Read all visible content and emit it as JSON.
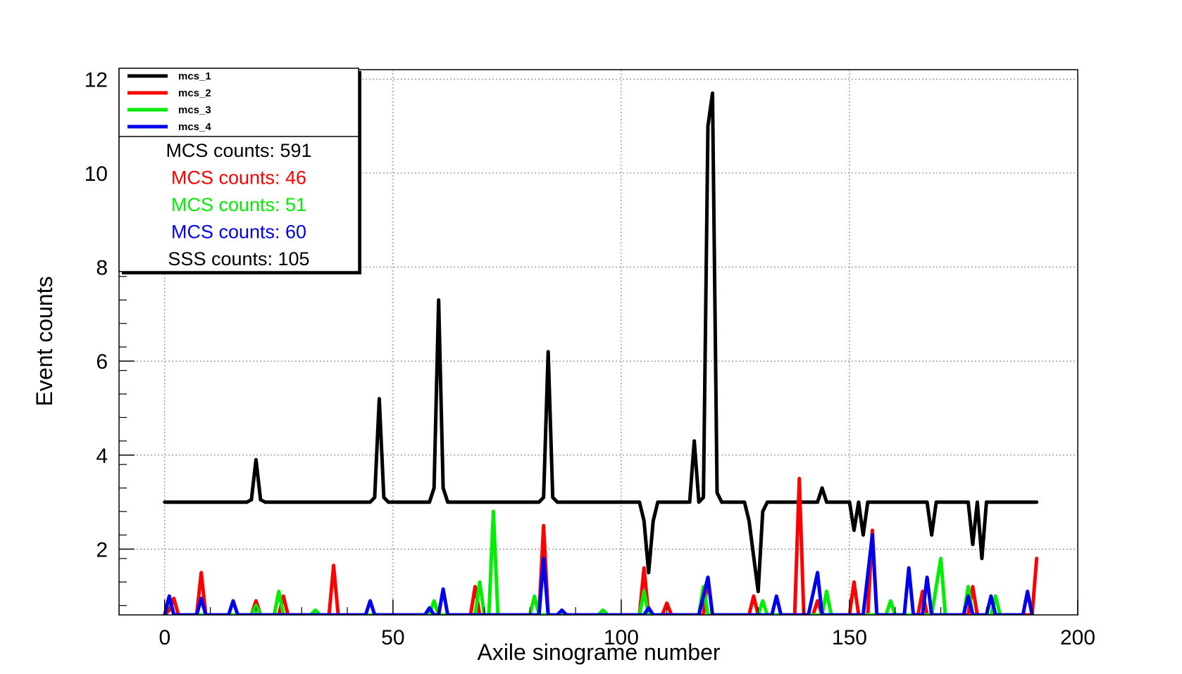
{
  "chart_data": {
    "type": "line",
    "title": "",
    "xlabel": "Axile sinograme number",
    "ylabel": "Event counts",
    "xlim": [
      -10,
      200
    ],
    "ylim": [
      0.6,
      12.2
    ],
    "x_ticks": [
      0,
      50,
      100,
      150,
      200
    ],
    "y_ticks": [
      2,
      4,
      6,
      8,
      10,
      12
    ],
    "grid": true,
    "legend_position": "top-left",
    "series": [
      {
        "name": "mcs_1",
        "color": "#000000",
        "points": [
          [
            0,
            3
          ],
          [
            18,
            3
          ],
          [
            19,
            3.05
          ],
          [
            20,
            3.9
          ],
          [
            21,
            3.05
          ],
          [
            22,
            3
          ],
          [
            45,
            3
          ],
          [
            46,
            3.1
          ],
          [
            47,
            5.2
          ],
          [
            48,
            3.1
          ],
          [
            49,
            3
          ],
          [
            58,
            3
          ],
          [
            59,
            3.3
          ],
          [
            60,
            7.3
          ],
          [
            61,
            3.3
          ],
          [
            62,
            3
          ],
          [
            82,
            3
          ],
          [
            83,
            3.1
          ],
          [
            84,
            6.2
          ],
          [
            85,
            3.1
          ],
          [
            86,
            3
          ],
          [
            104,
            3
          ],
          [
            105,
            2.6
          ],
          [
            106,
            1.5
          ],
          [
            107,
            2.6
          ],
          [
            108,
            3
          ],
          [
            115,
            3
          ],
          [
            116,
            4.3
          ],
          [
            117,
            3
          ],
          [
            118,
            3.1
          ],
          [
            119,
            11
          ],
          [
            120,
            11.7
          ],
          [
            121,
            3.2
          ],
          [
            122,
            3
          ],
          [
            127,
            3
          ],
          [
            128,
            2.6
          ],
          [
            130,
            1.1
          ],
          [
            131,
            2.8
          ],
          [
            132,
            3
          ],
          [
            143,
            3
          ],
          [
            144,
            3.3
          ],
          [
            145,
            3
          ],
          [
            150,
            3
          ],
          [
            151,
            2.4
          ],
          [
            152,
            3
          ],
          [
            153,
            2.3
          ],
          [
            154,
            3
          ],
          [
            167,
            3
          ],
          [
            168,
            2.3
          ],
          [
            169,
            3
          ],
          [
            176,
            3
          ],
          [
            177,
            2.1
          ],
          [
            178,
            3
          ],
          [
            179,
            1.8
          ],
          [
            180,
            3
          ],
          [
            191,
            3
          ]
        ]
      },
      {
        "name": "mcs_2",
        "color": "#ff0000",
        "points": [
          [
            0,
            0.6
          ],
          [
            1,
            0.7
          ],
          [
            2,
            0.95
          ],
          [
            3,
            0.6
          ],
          [
            7,
            0.6
          ],
          [
            8,
            1.5
          ],
          [
            9,
            0.6
          ],
          [
            19,
            0.6
          ],
          [
            20,
            0.9
          ],
          [
            21,
            0.6
          ],
          [
            25,
            0.6
          ],
          [
            26,
            1
          ],
          [
            27,
            0.6
          ],
          [
            36,
            0.6
          ],
          [
            37,
            1.65
          ],
          [
            38,
            0.6
          ],
          [
            67,
            0.6
          ],
          [
            68,
            1.2
          ],
          [
            69,
            0.6
          ],
          [
            82,
            0.6
          ],
          [
            83,
            2.5
          ],
          [
            84,
            0.6
          ],
          [
            104,
            0.6
          ],
          [
            105,
            1.6
          ],
          [
            106,
            0.6
          ],
          [
            109,
            0.6
          ],
          [
            110,
            0.85
          ],
          [
            111,
            0.6
          ],
          [
            118,
            0.6
          ],
          [
            119,
            1.4
          ],
          [
            120,
            0.6
          ],
          [
            128,
            0.6
          ],
          [
            129,
            1
          ],
          [
            130,
            0.6
          ],
          [
            138,
            0.6
          ],
          [
            139,
            3.5
          ],
          [
            140,
            0.6
          ],
          [
            142,
            0.6
          ],
          [
            143,
            0.9
          ],
          [
            144,
            0.6
          ],
          [
            150,
            0.6
          ],
          [
            151,
            1.3
          ],
          [
            152,
            0.6
          ],
          [
            154,
            0.6
          ],
          [
            155,
            2.4
          ],
          [
            156,
            0.6
          ],
          [
            165,
            0.6
          ],
          [
            166,
            1.1
          ],
          [
            167,
            0.6
          ],
          [
            176,
            0.6
          ],
          [
            177,
            1.2
          ],
          [
            178,
            0.6
          ],
          [
            190,
            0.6
          ],
          [
            191,
            1.8
          ]
        ]
      },
      {
        "name": "mcs_3",
        "color": "#00ee00",
        "points": [
          [
            0,
            0.6
          ],
          [
            1,
            1
          ],
          [
            2,
            0.6
          ],
          [
            19,
            0.6
          ],
          [
            20,
            0.8
          ],
          [
            21,
            0.6
          ],
          [
            24,
            0.6
          ],
          [
            25,
            1.1
          ],
          [
            26,
            0.6
          ],
          [
            32,
            0.6
          ],
          [
            33,
            0.7
          ],
          [
            34,
            0.6
          ],
          [
            58,
            0.6
          ],
          [
            59,
            0.9
          ],
          [
            60,
            0.6
          ],
          [
            68,
            0.6
          ],
          [
            69,
            1.3
          ],
          [
            70,
            0.6
          ],
          [
            71,
            0.6
          ],
          [
            72,
            2.8
          ],
          [
            73,
            0.6
          ],
          [
            80,
            0.6
          ],
          [
            81,
            1
          ],
          [
            82,
            0.6
          ],
          [
            95,
            0.6
          ],
          [
            96,
            0.7
          ],
          [
            97,
            0.6
          ],
          [
            104,
            0.6
          ],
          [
            105,
            1.1
          ],
          [
            106,
            0.6
          ],
          [
            117,
            0.6
          ],
          [
            118,
            1.2
          ],
          [
            119,
            0.6
          ],
          [
            130,
            0.6
          ],
          [
            131,
            0.9
          ],
          [
            132,
            0.6
          ],
          [
            144,
            0.6
          ],
          [
            145,
            1.1
          ],
          [
            146,
            0.6
          ],
          [
            158,
            0.6
          ],
          [
            159,
            0.9
          ],
          [
            160,
            0.6
          ],
          [
            168,
            0.6
          ],
          [
            170,
            1.8
          ],
          [
            171,
            0.6
          ],
          [
            175,
            0.6
          ],
          [
            176,
            1.2
          ],
          [
            177,
            0.6
          ],
          [
            181,
            0.6
          ],
          [
            182,
            1
          ],
          [
            183,
            0.6
          ]
        ]
      },
      {
        "name": "mcs_4",
        "color": "#0000ee",
        "points": [
          [
            0,
            0.6
          ],
          [
            1,
            1
          ],
          [
            2,
            0.6
          ],
          [
            7,
            0.6
          ],
          [
            8,
            0.95
          ],
          [
            9,
            0.6
          ],
          [
            14,
            0.6
          ],
          [
            15,
            0.9
          ],
          [
            16,
            0.6
          ],
          [
            44,
            0.6
          ],
          [
            45,
            0.9
          ],
          [
            46,
            0.6
          ],
          [
            57,
            0.6
          ],
          [
            58,
            0.75
          ],
          [
            59,
            0.6
          ],
          [
            60,
            0.6
          ],
          [
            61,
            1.15
          ],
          [
            62,
            0.6
          ],
          [
            82,
            0.6
          ],
          [
            83,
            1.8
          ],
          [
            84,
            0.6
          ],
          [
            86,
            0.6
          ],
          [
            87,
            0.7
          ],
          [
            88,
            0.6
          ],
          [
            105,
            0.6
          ],
          [
            106,
            0.75
          ],
          [
            107,
            0.6
          ],
          [
            117,
            0.6
          ],
          [
            119,
            1.4
          ],
          [
            120,
            0.6
          ],
          [
            133,
            0.6
          ],
          [
            134,
            1
          ],
          [
            135,
            0.6
          ],
          [
            141,
            0.6
          ],
          [
            143,
            1.5
          ],
          [
            144,
            0.6
          ],
          [
            153,
            0.6
          ],
          [
            155,
            2.3
          ],
          [
            156,
            0.6
          ],
          [
            162,
            0.6
          ],
          [
            163,
            1.6
          ],
          [
            164,
            0.6
          ],
          [
            166,
            0.6
          ],
          [
            167,
            1.4
          ],
          [
            168,
            0.6
          ],
          [
            175,
            0.6
          ],
          [
            176,
            1
          ],
          [
            177,
            0.6
          ],
          [
            180,
            0.6
          ],
          [
            181,
            1
          ],
          [
            182,
            0.6
          ],
          [
            188,
            0.6
          ],
          [
            189,
            1.1
          ],
          [
            190,
            0.6
          ]
        ]
      }
    ],
    "stats": [
      {
        "text": "MCS counts: 591",
        "color": "#000000"
      },
      {
        "text": "MCS counts: 46",
        "color": "#ff0000"
      },
      {
        "text": "MCS counts: 51",
        "color": "#00ee00"
      },
      {
        "text": "MCS counts: 60",
        "color": "#0000ee"
      },
      {
        "text": "SSS counts: 105",
        "color": "#000000"
      }
    ]
  }
}
